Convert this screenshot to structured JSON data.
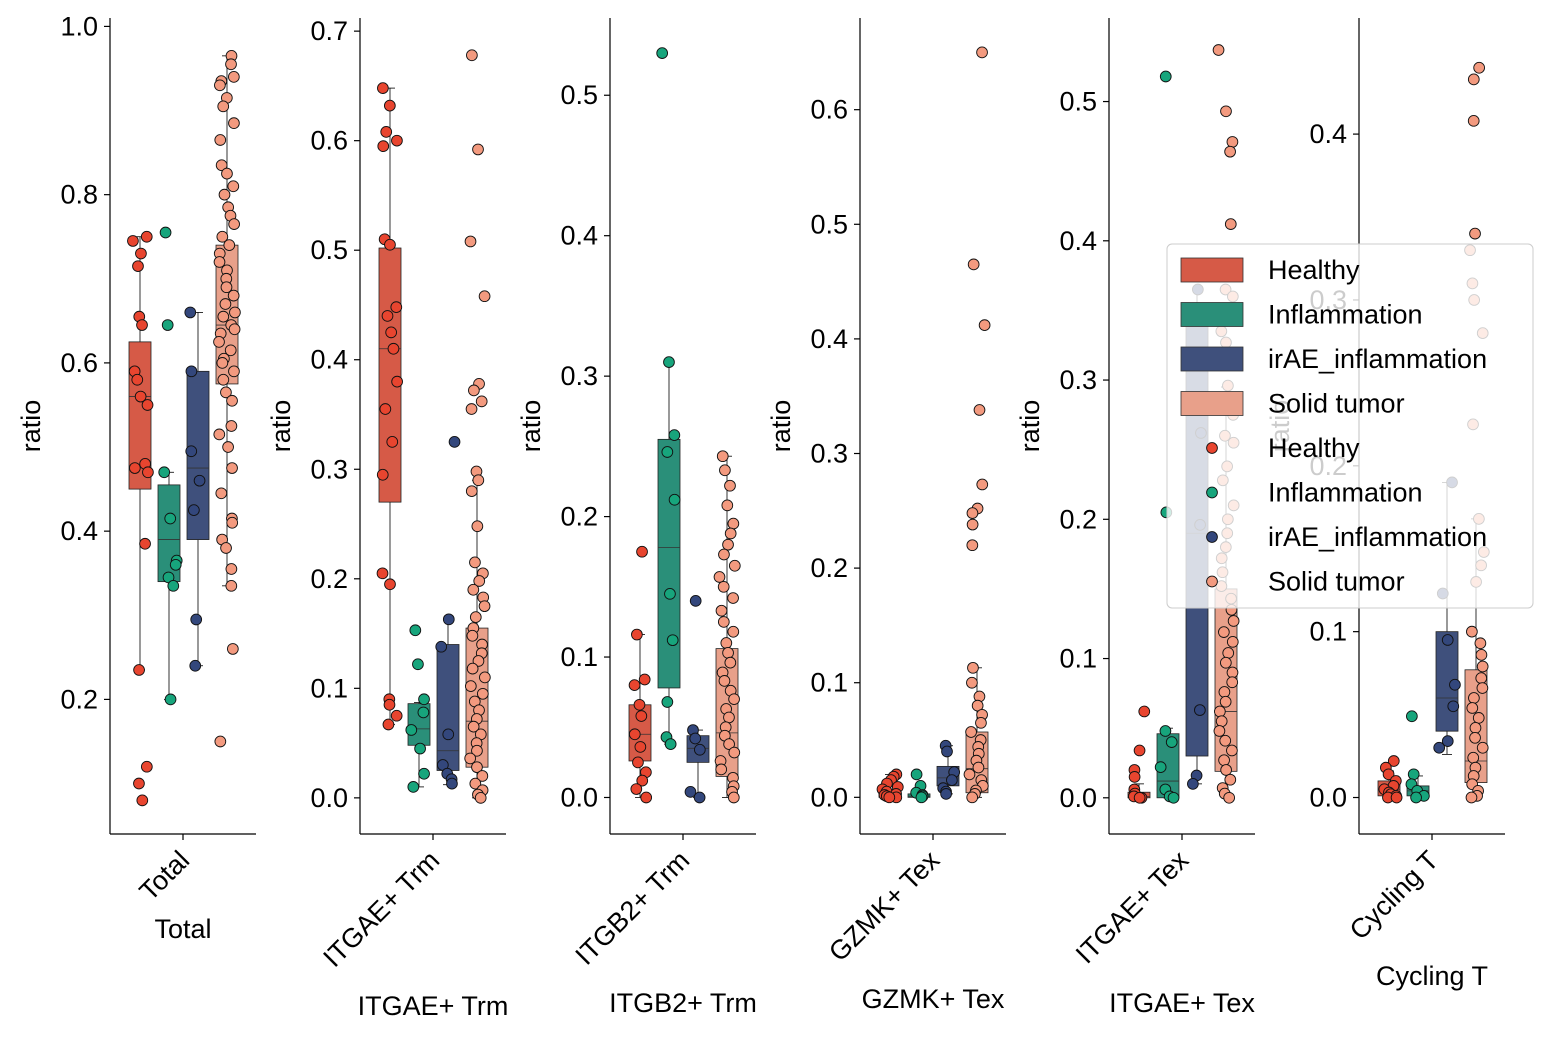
{
  "chart_data": {
    "type": "box",
    "groups": [
      "Healthy",
      "Inflammation",
      "irAE_inflammation",
      "Solid tumor"
    ],
    "colors": {
      "Healthy": "#d65a47",
      "Inflammation": "#2a8f79",
      "irAE_inflammation": "#3f507c",
      "Solid tumor": "#e8a08a"
    },
    "point_colors": {
      "Healthy": "#e8452f",
      "Inflammation": "#17a57c",
      "irAE_inflammation": "#33477c",
      "Solid tumor": "#f39a7f"
    },
    "legend": {
      "placement": "right-center",
      "box_entries": [
        "Healthy",
        "Inflammation",
        "irAE_inflammation",
        "Solid tumor"
      ],
      "point_entries": [
        "Healthy",
        "Inflammation",
        "irAE_inflammation",
        "Solid tumor"
      ]
    },
    "panels": [
      {
        "title": "Total",
        "tick_label": "Total",
        "xlabel": "Total",
        "ylabel": "ratio",
        "ylim": [
          0.04,
          1.01
        ],
        "yticks": [
          0.2,
          0.4,
          0.6,
          0.8,
          1.0
        ],
        "ytick_labels": [
          "0.2",
          "0.4",
          "0.6",
          "0.8",
          "1.0"
        ],
        "boxes": [
          {
            "group": "Healthy",
            "q1": 0.45,
            "median": 0.56,
            "q3": 0.625,
            "wlo": 0.235,
            "whi": 0.75,
            "points": [
              0.75,
              0.745,
              0.73,
              0.715,
              0.655,
              0.645,
              0.59,
              0.58,
              0.56,
              0.55,
              0.48,
              0.475,
              0.47,
              0.385,
              0.235,
              0.12,
              0.1,
              0.08
            ]
          },
          {
            "group": "Inflammation",
            "q1": 0.34,
            "median": 0.39,
            "q3": 0.455,
            "wlo": 0.2,
            "whi": 0.47,
            "points": [
              0.755,
              0.645,
              0.47,
              0.415,
              0.365,
              0.36,
              0.345,
              0.335,
              0.2
            ]
          },
          {
            "group": "irAE_inflammation",
            "q1": 0.39,
            "median": 0.475,
            "q3": 0.59,
            "wlo": 0.24,
            "whi": 0.66,
            "points": [
              0.66,
              0.59,
              0.495,
              0.46,
              0.425,
              0.295,
              0.24
            ]
          },
          {
            "group": "Solid tumor",
            "q1": 0.575,
            "median": 0.645,
            "q3": 0.74,
            "wlo": 0.335,
            "whi": 0.965,
            "points": [
              0.965,
              0.955,
              0.94,
              0.935,
              0.93,
              0.915,
              0.905,
              0.885,
              0.865,
              0.835,
              0.825,
              0.81,
              0.8,
              0.785,
              0.775,
              0.765,
              0.75,
              0.74,
              0.73,
              0.72,
              0.71,
              0.7,
              0.69,
              0.68,
              0.67,
              0.66,
              0.655,
              0.645,
              0.64,
              0.635,
              0.625,
              0.615,
              0.605,
              0.6,
              0.59,
              0.58,
              0.565,
              0.555,
              0.525,
              0.515,
              0.5,
              0.475,
              0.445,
              0.415,
              0.41,
              0.39,
              0.38,
              0.355,
              0.335,
              0.26,
              0.15
            ]
          }
        ]
      },
      {
        "title": "ITGAE+ Trm",
        "tick_label": "ITGAE+ Trm",
        "xlabel": "ITGAE+ Trm",
        "ylabel": "ratio",
        "ylim": [
          -0.033,
          0.712
        ],
        "yticks": [
          0.0,
          0.1,
          0.2,
          0.3,
          0.4,
          0.5,
          0.6,
          0.7
        ],
        "ytick_labels": [
          "0.0",
          "0.1",
          "0.2",
          "0.3",
          "0.4",
          "0.5",
          "0.6",
          "0.7"
        ],
        "boxes": [
          {
            "group": "Healthy",
            "q1": 0.27,
            "median": 0.41,
            "q3": 0.502,
            "wlo": 0.067,
            "whi": 0.648,
            "points": [
              0.648,
              0.632,
              0.608,
              0.6,
              0.595,
              0.51,
              0.505,
              0.448,
              0.44,
              0.425,
              0.41,
              0.38,
              0.355,
              0.325,
              0.295,
              0.205,
              0.195,
              0.09,
              0.085,
              0.075,
              0.067
            ]
          },
          {
            "group": "Inflammation",
            "q1": 0.048,
            "median": 0.063,
            "q3": 0.086,
            "wlo": 0.01,
            "whi": 0.087,
            "points": [
              0.153,
              0.122,
              0.09,
              0.078,
              0.062,
              0.045,
              0.022,
              0.01
            ]
          },
          {
            "group": "irAE_inflammation",
            "q1": 0.025,
            "median": 0.043,
            "q3": 0.14,
            "wlo": 0.012,
            "whi": 0.163,
            "points": [
              0.325,
              0.163,
              0.138,
              0.058,
              0.03,
              0.022,
              0.017,
              0.013
            ]
          },
          {
            "group": "Solid tumor",
            "q1": 0.028,
            "median": 0.07,
            "q3": 0.155,
            "wlo": 0.0,
            "whi": 0.29,
            "points": [
              0.678,
              0.592,
              0.508,
              0.458,
              0.378,
              0.372,
              0.362,
              0.355,
              0.298,
              0.29,
              0.28,
              0.248,
              0.215,
              0.205,
              0.198,
              0.19,
              0.183,
              0.175,
              0.165,
              0.155,
              0.148,
              0.14,
              0.132,
              0.125,
              0.118,
              0.11,
              0.102,
              0.095,
              0.088,
              0.08,
              0.072,
              0.065,
              0.058,
              0.05,
              0.043,
              0.036,
              0.028,
              0.02,
              0.013,
              0.007,
              0.003,
              0.0
            ]
          }
        ]
      },
      {
        "title": "ITGB2+ Trm",
        "tick_label": "ITGB2+ Trm",
        "xlabel": "ITGB2+ Trm",
        "ylabel": "ratio",
        "ylim": [
          -0.026,
          0.555
        ],
        "yticks": [
          0.0,
          0.1,
          0.2,
          0.3,
          0.4,
          0.5
        ],
        "ytick_labels": [
          "0.0",
          "0.1",
          "0.2",
          "0.3",
          "0.4",
          "0.5"
        ],
        "boxes": [
          {
            "group": "Healthy",
            "q1": 0.026,
            "median": 0.045,
            "q3": 0.066,
            "wlo": 0.0,
            "whi": 0.116,
            "points": [
              0.175,
              0.116,
              0.084,
              0.08,
              0.066,
              0.058,
              0.045,
              0.036,
              0.025,
              0.018,
              0.012,
              0.006,
              0.0
            ]
          },
          {
            "group": "Inflammation",
            "q1": 0.078,
            "median": 0.178,
            "q3": 0.255,
            "wlo": 0.038,
            "whi": 0.31,
            "points": [
              0.53,
              0.31,
              0.258,
              0.246,
              0.212,
              0.145,
              0.112,
              0.068,
              0.043,
              0.038
            ]
          },
          {
            "group": "irAE_inflammation",
            "q1": 0.025,
            "median": 0.035,
            "q3": 0.044,
            "wlo": 0.0,
            "whi": 0.048,
            "points": [
              0.14,
              0.048,
              0.042,
              0.034,
              0.004,
              0.0
            ]
          },
          {
            "group": "Solid tumor",
            "q1": 0.015,
            "median": 0.046,
            "q3": 0.106,
            "wlo": 0.0,
            "whi": 0.243,
            "points": [
              0.243,
              0.233,
              0.222,
              0.208,
              0.195,
              0.188,
              0.18,
              0.173,
              0.165,
              0.157,
              0.15,
              0.142,
              0.133,
              0.125,
              0.118,
              0.11,
              0.103,
              0.096,
              0.089,
              0.083,
              0.076,
              0.07,
              0.063,
              0.057,
              0.05,
              0.044,
              0.038,
              0.032,
              0.026,
              0.02,
              0.014,
              0.008,
              0.004,
              0.0
            ]
          }
        ]
      },
      {
        "title": "GZMK+ Tex",
        "tick_label": "GZMK+ Tex",
        "xlabel": "GZMK+ Tex",
        "ylabel": "ratio",
        "ylim": [
          -0.032,
          0.68
        ],
        "yticks": [
          0.0,
          0.1,
          0.2,
          0.3,
          0.4,
          0.5,
          0.6
        ],
        "ytick_labels": [
          "0.0",
          "0.1",
          "0.2",
          "0.3",
          "0.4",
          "0.5",
          "0.6"
        ],
        "boxes": [
          {
            "group": "Healthy",
            "q1": 0.0,
            "median": 0.003,
            "q3": 0.007,
            "wlo": 0.0,
            "whi": 0.02,
            "points": [
              0.02,
              0.018,
              0.015,
              0.012,
              0.009,
              0.007,
              0.005,
              0.003,
              0.002,
              0.001,
              0.0,
              0.0
            ]
          },
          {
            "group": "Inflammation",
            "q1": 0.0,
            "median": 0.001,
            "q3": 0.003,
            "wlo": 0.0,
            "whi": 0.004,
            "points": [
              0.02,
              0.01,
              0.004,
              0.002,
              0.001,
              0.0
            ]
          },
          {
            "group": "irAE_inflammation",
            "q1": 0.01,
            "median": 0.017,
            "q3": 0.027,
            "wlo": 0.003,
            "whi": 0.045,
            "points": [
              0.045,
              0.04,
              0.022,
              0.015,
              0.008,
              0.005,
              0.003
            ]
          },
          {
            "group": "Solid tumor",
            "q1": 0.004,
            "median": 0.025,
            "q3": 0.057,
            "wlo": 0.0,
            "whi": 0.113,
            "points": [
              0.65,
              0.465,
              0.412,
              0.338,
              0.273,
              0.252,
              0.248,
              0.238,
              0.22,
              0.113,
              0.1,
              0.088,
              0.08,
              0.072,
              0.065,
              0.057,
              0.05,
              0.044,
              0.038,
              0.032,
              0.026,
              0.02,
              0.015,
              0.01,
              0.006,
              0.003,
              0.0
            ]
          }
        ]
      },
      {
        "title": "ITGAE+ Tex",
        "tick_label": "ITGAE+ Tex",
        "xlabel": "ITGAE+ Tex",
        "ylabel": "ratio",
        "ylim": [
          -0.026,
          0.56
        ],
        "yticks": [
          0.0,
          0.1,
          0.2,
          0.3,
          0.4,
          0.5
        ],
        "ytick_labels": [
          "0.0",
          "0.1",
          "0.2",
          "0.3",
          "0.4",
          "0.5"
        ],
        "boxes": [
          {
            "group": "Healthy",
            "q1": 0.0,
            "median": 0.001,
            "q3": 0.004,
            "wlo": 0.0,
            "whi": 0.01,
            "points": [
              0.062,
              0.034,
              0.02,
              0.015,
              0.006,
              0.003,
              0.001,
              0.0,
              0.0
            ]
          },
          {
            "group": "Inflammation",
            "q1": 0.0,
            "median": 0.012,
            "q3": 0.046,
            "wlo": 0.0,
            "whi": 0.05,
            "points": [
              0.518,
              0.205,
              0.048,
              0.04,
              0.022,
              0.006,
              0.001,
              0.0
            ]
          },
          {
            "group": "irAE_inflammation",
            "q1": 0.03,
            "median": 0.19,
            "q3": 0.355,
            "wlo": 0.01,
            "whi": 0.365,
            "points": [
              0.365,
              0.262,
              0.196,
              0.063,
              0.016,
              0.01
            ]
          },
          {
            "group": "Solid tumor",
            "q1": 0.019,
            "median": 0.062,
            "q3": 0.15,
            "wlo": 0.0,
            "whi": 0.295,
            "points": [
              0.537,
              0.493,
              0.471,
              0.464,
              0.412,
              0.375,
              0.365,
              0.36,
              0.345,
              0.335,
              0.327,
              0.296,
              0.275,
              0.26,
              0.255,
              0.238,
              0.228,
              0.21,
              0.2,
              0.19,
              0.18,
              0.172,
              0.162,
              0.152,
              0.143,
              0.135,
              0.127,
              0.119,
              0.112,
              0.104,
              0.097,
              0.09,
              0.083,
              0.076,
              0.069,
              0.062,
              0.055,
              0.048,
              0.041,
              0.034,
              0.027,
              0.02,
              0.013,
              0.007,
              0.003,
              0.0
            ]
          }
        ]
      },
      {
        "title": "Cycling T",
        "tick_label": "Cycling T",
        "xlabel": "Cycling T",
        "ylabel": "ratio",
        "ylim": [
          -0.022,
          0.47
        ],
        "yticks": [
          0.0,
          0.1,
          0.2,
          0.3,
          0.4
        ],
        "ytick_labels": [
          "0.0",
          "0.1",
          "0.2",
          "0.3",
          "0.4"
        ],
        "boxes": [
          {
            "group": "Healthy",
            "q1": 0.001,
            "median": 0.005,
            "q3": 0.01,
            "wlo": 0.0,
            "whi": 0.016,
            "points": [
              0.022,
              0.018,
              0.014,
              0.01,
              0.007,
              0.005,
              0.003,
              0.002,
              0.001,
              0.0,
              0.0
            ]
          },
          {
            "group": "Inflammation",
            "q1": 0.001,
            "median": 0.004,
            "q3": 0.007,
            "wlo": 0.0,
            "whi": 0.013,
            "points": [
              0.049,
              0.014,
              0.008,
              0.004,
              0.001,
              0.0
            ]
          },
          {
            "group": "irAE_inflammation",
            "q1": 0.04,
            "median": 0.06,
            "q3": 0.1,
            "wlo": 0.026,
            "whi": 0.19,
            "points": [
              0.19,
              0.123,
              0.095,
              0.068,
              0.055,
              0.034,
              0.03
            ]
          },
          {
            "group": "Solid tumor",
            "q1": 0.009,
            "median": 0.022,
            "q3": 0.077,
            "wlo": 0.0,
            "whi": 0.168,
            "points": [
              0.44,
              0.433,
              0.408,
              0.34,
              0.33,
              0.31,
              0.3,
              0.28,
              0.225,
              0.168,
              0.148,
              0.14,
              0.13,
              0.1,
              0.093,
              0.086,
              0.079,
              0.072,
              0.066,
              0.06,
              0.054,
              0.048,
              0.042,
              0.036,
              0.03,
              0.024,
              0.018,
              0.013,
              0.008,
              0.004,
              0.001,
              0.0
            ]
          }
        ]
      }
    ]
  }
}
